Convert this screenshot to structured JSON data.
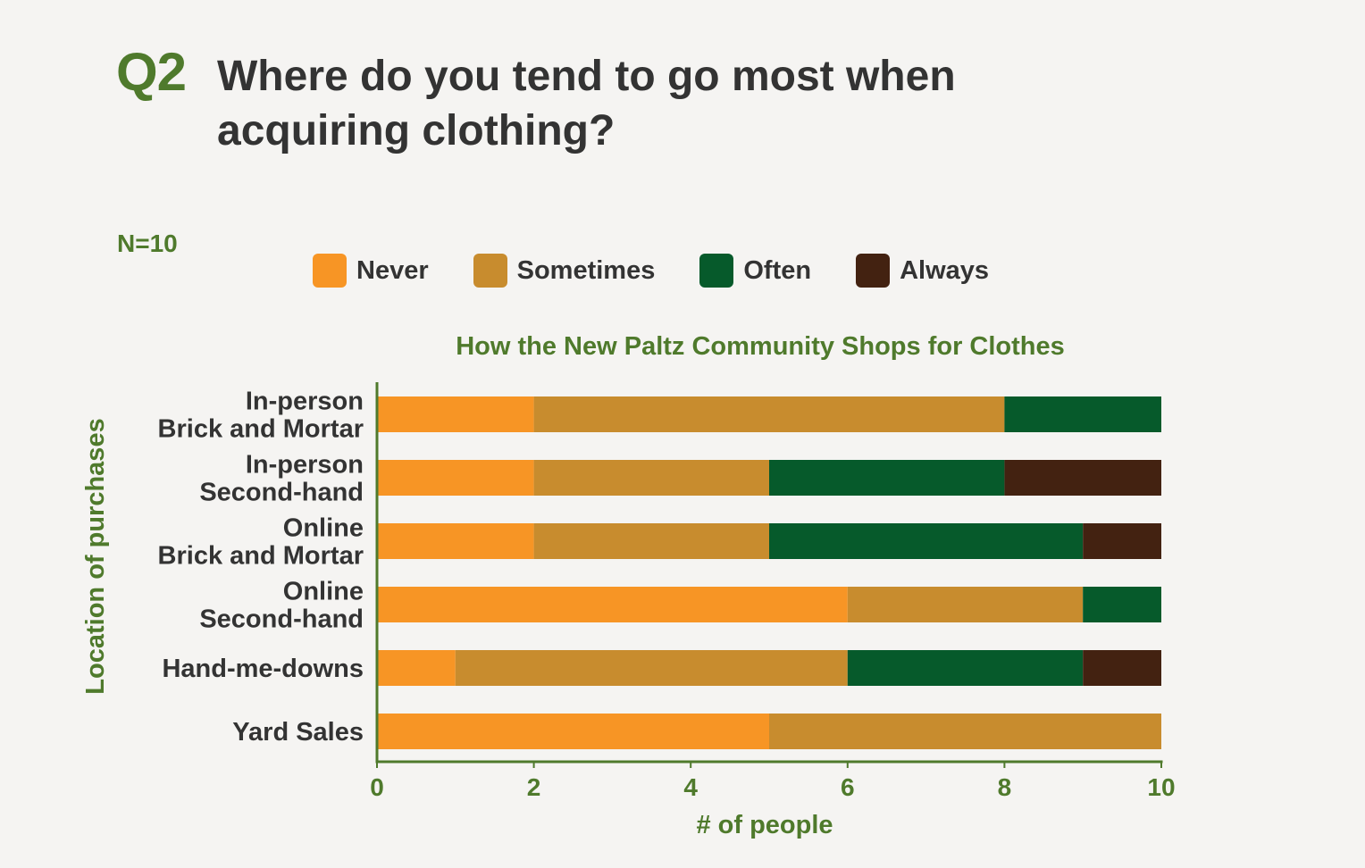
{
  "header": {
    "question_number": "Q2",
    "question_text": "Where do you tend to go most when acquiring clothing?",
    "sample_size": "N=10"
  },
  "colors": {
    "accent_green": "#4f7a2c",
    "text_dark": "#333333",
    "background": "#f5f4f2"
  },
  "chart_data": {
    "type": "bar",
    "orientation": "horizontal",
    "stacked": true,
    "title": "How the New Paltz Community Shops for Clothes",
    "xlabel": "# of people",
    "ylabel": "Location of purchases",
    "xlim": [
      0,
      10
    ],
    "xticks": [
      0,
      2,
      4,
      6,
      8,
      10
    ],
    "grid": false,
    "legend_position": "top",
    "categories": [
      "In-person\nBrick and Mortar",
      "In-person\nSecond-hand",
      "Online\nBrick and Mortar",
      "Online\nSecond-hand",
      "Hand-me-downs",
      "Yard Sales"
    ],
    "series": [
      {
        "name": "Never",
        "color": "#f79525",
        "values": [
          2,
          2,
          2,
          6,
          1,
          5
        ]
      },
      {
        "name": "Sometimes",
        "color": "#c88c2e",
        "values": [
          6,
          3,
          3,
          3,
          5,
          5
        ]
      },
      {
        "name": "Often",
        "color": "#065a2b",
        "values": [
          2,
          3,
          4,
          1,
          3,
          0
        ]
      },
      {
        "name": "Always",
        "color": "#432211",
        "values": [
          0,
          2,
          1,
          0,
          1,
          0
        ]
      }
    ]
  }
}
